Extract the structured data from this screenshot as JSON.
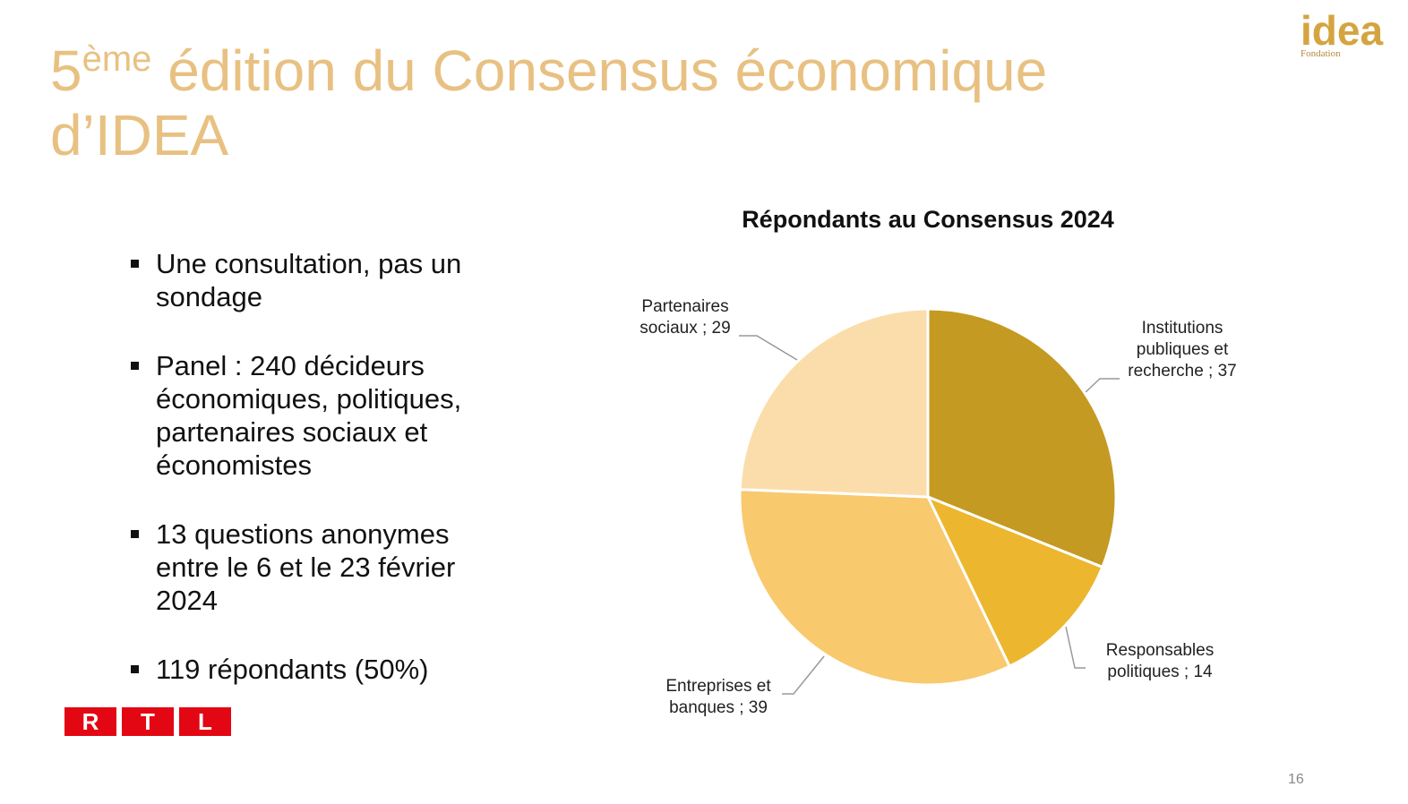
{
  "header": {
    "title_number": "5",
    "title_sup": "ème",
    "title_rest": " édition du Consensus économique d’IDEA"
  },
  "logo": {
    "word": "idea",
    "sub": "Fondation"
  },
  "bullets": [
    "Une consultation, pas un sondage",
    "Panel : 240 décideurs économiques, politiques, partenaires sociaux et économistes",
    "13 questions anonymes entre le 6 et le 23 février 2024",
    "119 répondants (50%)"
  ],
  "rtl": [
    "R",
    "T",
    "L"
  ],
  "page_number": "16",
  "chart_data": {
    "type": "pie",
    "title": "Répondants au Consensus 2024",
    "categories": [
      "Institutions publiques et recherche",
      "Responsables politiques",
      "Entreprises et banques",
      "Partenaires sociaux"
    ],
    "values": [
      37,
      14,
      39,
      29
    ],
    "value_labels": [
      "Institutions publiques et recherche ; 37",
      "Responsables politiques ; 14",
      "Entreprises et banques ; 39",
      "Partenaires sociaux ; 29"
    ],
    "colors": [
      "#c59a22",
      "#ecb62e",
      "#f8c96d",
      "#fbddab"
    ]
  }
}
